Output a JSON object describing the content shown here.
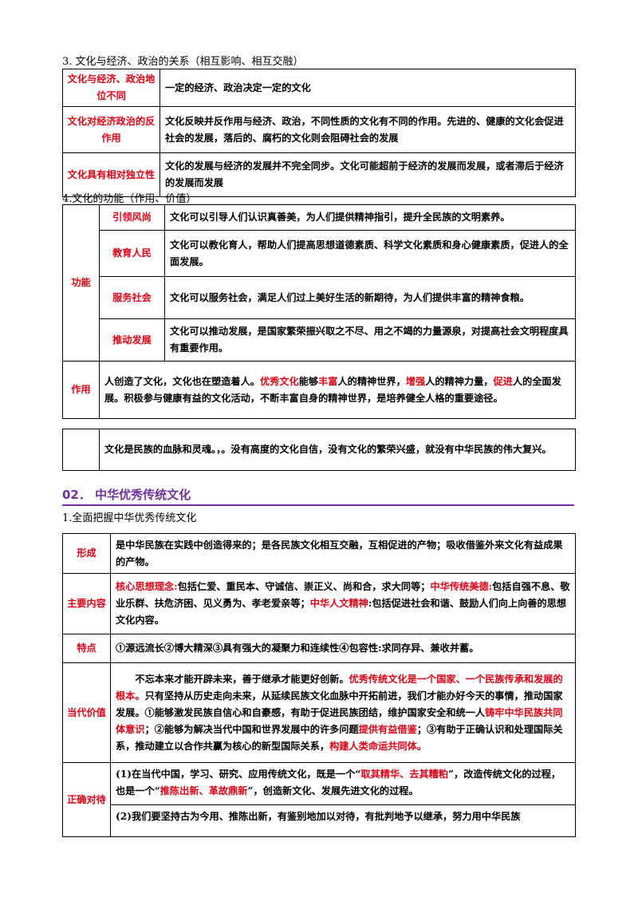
{
  "sec3": {
    "heading": "3.  文化与经济、政治的关系（相互影响、相互交融）",
    "rows": [
      {
        "label": "文化与经济、政治地位不同",
        "text": "一定的经济、政治决定一定的文化"
      },
      {
        "label": "文化对经济政治的反作用",
        "text": "文化反映并反作用与经济、政治，不同性质的文化有不同的作用。先进的、健康的文化会促进社会的发展，落后的、腐朽的文化则会阻碍社会的发展"
      },
      {
        "label": "文化具有相对独立性",
        "text": "文化的发展与经济的发展并不完全同步。文化可能超前于经济的发展而发展，或者滞后于经济的发展而发展"
      }
    ]
  },
  "sec4": {
    "heading": "4.文化的功能（作用、价值）",
    "group_label": "功能",
    "functions": [
      {
        "label": "引领风尚",
        "text": "文化可以引导人们认识真善美，为人们提供精神指引，提升全民族的文明素养。"
      },
      {
        "label": "教育人民",
        "text": "文化可以教化育人，帮助人们提高思想道德素质、科学文化素质和身心健康素质，促进人的全面发展。"
      },
      {
        "label": "服务社会",
        "text": "文化可以服务社会，满足人们过上美好生活的新期待，为人们提供丰富的精神食粮。"
      },
      {
        "label": "推动发展",
        "text": "文化可以推动发展，是国家繁荣振兴取之不尽、用之不竭的力量源泉，对提高社会文明程度具有重要作用。"
      }
    ],
    "role": {
      "label": "作用",
      "t1": "人创造了文化，文化也在塑造着人。",
      "t2": "优秀文化",
      "t3": "能够",
      "t4": "丰富",
      "t5": "人的精神世界，",
      "t6": "增强",
      "t7": "人的精神力量，",
      "t8": "促进",
      "t9": "人的全面发展。积极参与健康有益的文化活动，不断丰富自身的精神世界，是培养健全人格的重要途径。"
    }
  },
  "soul": {
    "text": "文化是民族的血脉和灵魂。，。没有高度的文化自信，没有文化的繁荣兴盛，就没有中华民族的伟大复兴。"
  },
  "section2": {
    "title": "02．  中华优秀传统文化",
    "heading": "1.全面把握中华优秀传统文化",
    "formation": {
      "label": "形成",
      "text": "是中华民族在实践中创造得来的；是各民族文化相互交融，互相促进的产物；吸收借鉴外来文化有益成果的产物。"
    },
    "content": {
      "label": "主要内容",
      "r1": "核心思想理念:",
      "t1": "包括仁爱、重民本、守诚信、崇正义、尚和合，求大同等；",
      "r2": "中华传统美德:",
      "t2": "包括自强不息、敬业乐群、扶危济困、见义勇为、孝老爱亲等；",
      "r3": "中华人文精神",
      "t3": ":包括促进社会和谐、鼓励人们向上向善的思想文化内容。"
    },
    "features": {
      "label": "特点",
      "text": "①源远流长②博大精深③具有强大的凝聚力和连续性④包容性:求同存异、兼收并蓄。"
    },
    "value": {
      "label": "当代价值",
      "t1": "不忘本来才能开辟未来，善于继承才能更好创新。",
      "r1": "优秀传统文化是一个国家、一个民族传承和发展的根本。",
      "t2": "只有坚持从历史走向未来，从延续民族文化血脉中开拓前进，我们才能办好今天的事情，推动国家发展。①能够激发民族自信心和自豪感，有助于促进民族团结，维护国家安全和统一人",
      "r2": "铸牢中华民族共同体意识",
      "t3": "；②能够为解决当代中国和世界发展中的许多问题",
      "r3": "提供有益借鉴",
      "t4": "；③有助于正确认识和处理国际关系，推动建立以合作共赢为核心的新型国际关系，",
      "r4": "构建人类命运共同体。"
    },
    "attitude": {
      "label": "正确对待",
      "p1a": "(1)在当代中国，学习、研究、应用传统文化，既是一个“",
      "p1r": "取其精华、去其糟粕",
      "p1b": "”，改造传统文化的过程，也是一个“",
      "p1r2": "推陈出新、革故鼎新",
      "p1c": "”，创造新文化、发展先进文化的过程。",
      "p2": "(2)我们要坚持古为今用、推陈出新，有鉴别地加以对待，有批判地予以继承，努力用中华民族"
    }
  }
}
